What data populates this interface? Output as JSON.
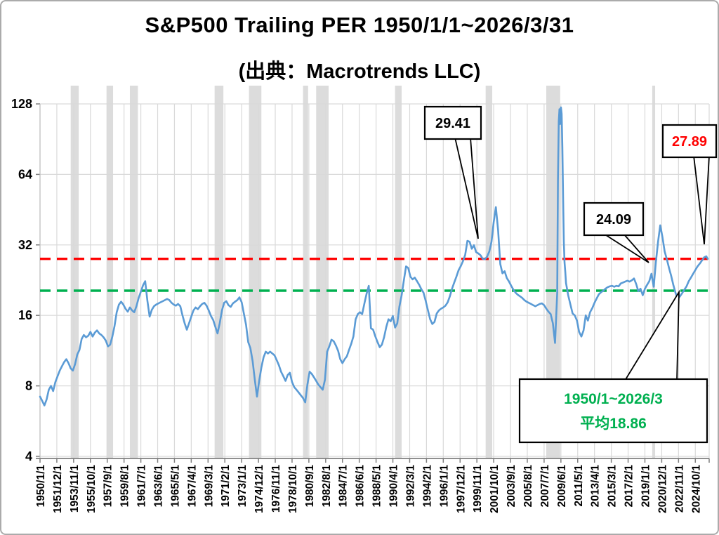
{
  "title": "S&P500 Trailing PER 1950/1/1~2026/3/31",
  "subtitle": "(出典：Macrotrends LLC)",
  "chart_data": {
    "type": "line",
    "series_name": "S&P500 Trailing PER",
    "y_scale": "log2",
    "ylim": [
      4,
      128
    ],
    "y_ticks": [
      128,
      64,
      32,
      16,
      8,
      4
    ],
    "x_tick_interval_months": 23,
    "x_tick_labels": [
      "1950/1/1",
      "1951/12/1",
      "1953/11/1",
      "1955/10/1",
      "1957/9/1",
      "1959/8/1",
      "1961/7/1",
      "1963/6/1",
      "1965/5/1",
      "1967/4/1",
      "1969/3/1",
      "1971/2/1",
      "1973/1/1",
      "1974/12/1",
      "1976/11/1",
      "1978/10/1",
      "1980/9/1",
      "1982/8/1",
      "1984/7/1",
      "1986/6/1",
      "1988/5/1",
      "1990/4/1",
      "1992/3/1",
      "1994/2/1",
      "1996/1/1",
      "1997/12/1",
      "1999/11/1",
      "2001/10/1",
      "2003/9/1",
      "2005/8/1",
      "2007/7/1",
      "2009/6/1",
      "2011/5/1",
      "2013/4/1",
      "2015/3/1",
      "2017/2/1",
      "2019/1/1",
      "2020/12/1",
      "2022/11/1",
      "2024/10/1"
    ],
    "grid": true,
    "legend": "none",
    "latest_line": {
      "value": 27.89,
      "color": "#ff0000",
      "style": "dashed"
    },
    "average_line": {
      "value": 18.86,
      "color": "#00b050",
      "style": "dashed"
    },
    "annotations": [
      {
        "label": "29.41",
        "color": "#000000"
      },
      {
        "label": "24.09",
        "color": "#000000"
      },
      {
        "label": "27.89",
        "color": "#ff0000"
      }
    ],
    "note_box": {
      "lines": [
        "1950/1~2026/3",
        "平均18.86"
      ],
      "color": "#00b050"
    },
    "recession_bands_months": [
      [
        42,
        53
      ],
      [
        91,
        100
      ],
      [
        123,
        134
      ],
      [
        239,
        251
      ],
      [
        286,
        303
      ],
      [
        360,
        367
      ],
      [
        378,
        395
      ],
      [
        486,
        495
      ],
      [
        610,
        619
      ],
      [
        693,
        712
      ],
      [
        838,
        842
      ]
    ],
    "colors": {
      "line": "#5b9bd5",
      "band": "#dcdcdc",
      "grid": "#d9d9d9",
      "axis": "#7f7f7f"
    },
    "points": [
      [
        1950,
        7.2
      ],
      [
        1950.25,
        6.9
      ],
      [
        1950.5,
        6.6
      ],
      [
        1950.75,
        7.0
      ],
      [
        1951,
        7.7
      ],
      [
        1951.25,
        8.0
      ],
      [
        1951.5,
        7.6
      ],
      [
        1951.75,
        8.3
      ],
      [
        1952,
        8.8
      ],
      [
        1952.25,
        9.3
      ],
      [
        1952.5,
        9.7
      ],
      [
        1952.75,
        10.1
      ],
      [
        1953,
        10.4
      ],
      [
        1953.25,
        10.0
      ],
      [
        1953.5,
        9.5
      ],
      [
        1953.75,
        9.3
      ],
      [
        1954,
        9.9
      ],
      [
        1954.25,
        10.9
      ],
      [
        1954.5,
        11.4
      ],
      [
        1954.75,
        12.7
      ],
      [
        1955,
        13.2
      ],
      [
        1955.25,
        12.9
      ],
      [
        1955.5,
        13.1
      ],
      [
        1955.75,
        13.6
      ],
      [
        1956,
        13.0
      ],
      [
        1956.25,
        13.5
      ],
      [
        1956.5,
        13.8
      ],
      [
        1956.75,
        13.4
      ],
      [
        1957,
        13.2
      ],
      [
        1957.25,
        12.9
      ],
      [
        1957.5,
        12.5
      ],
      [
        1957.75,
        11.8
      ],
      [
        1958,
        12.0
      ],
      [
        1958.25,
        13.0
      ],
      [
        1958.5,
        14.4
      ],
      [
        1958.75,
        16.5
      ],
      [
        1959,
        17.8
      ],
      [
        1959.25,
        18.3
      ],
      [
        1959.5,
        17.8
      ],
      [
        1959.75,
        17.1
      ],
      [
        1960,
        16.6
      ],
      [
        1960.25,
        17.3
      ],
      [
        1960.5,
        16.8
      ],
      [
        1960.75,
        16.5
      ],
      [
        1961,
        17.5
      ],
      [
        1961.25,
        19.0
      ],
      [
        1961.5,
        20.2
      ],
      [
        1961.75,
        21.5
      ],
      [
        1962,
        22.4
      ],
      [
        1962.25,
        18.5
      ],
      [
        1962.5,
        15.8
      ],
      [
        1962.75,
        16.9
      ],
      [
        1963,
        17.5
      ],
      [
        1963.25,
        17.8
      ],
      [
        1963.5,
        18.0
      ],
      [
        1963.75,
        18.2
      ],
      [
        1964,
        18.4
      ],
      [
        1964.25,
        18.6
      ],
      [
        1964.5,
        18.8
      ],
      [
        1964.75,
        18.6
      ],
      [
        1965,
        18.1
      ],
      [
        1965.25,
        17.8
      ],
      [
        1965.5,
        17.6
      ],
      [
        1965.75,
        17.9
      ],
      [
        1966,
        17.5
      ],
      [
        1966.25,
        16.0
      ],
      [
        1966.5,
        14.8
      ],
      [
        1966.75,
        13.9
      ],
      [
        1967,
        14.8
      ],
      [
        1967.25,
        15.8
      ],
      [
        1967.5,
        16.8
      ],
      [
        1967.75,
        17.3
      ],
      [
        1968,
        17.0
      ],
      [
        1968.25,
        17.5
      ],
      [
        1968.5,
        17.9
      ],
      [
        1968.75,
        18.1
      ],
      [
        1969,
        17.6
      ],
      [
        1969.25,
        16.8
      ],
      [
        1969.5,
        15.9
      ],
      [
        1969.75,
        15.3
      ],
      [
        1970,
        14.3
      ],
      [
        1970.25,
        13.4
      ],
      [
        1970.5,
        14.8
      ],
      [
        1970.75,
        16.8
      ],
      [
        1971,
        18.1
      ],
      [
        1971.25,
        18.4
      ],
      [
        1971.5,
        17.7
      ],
      [
        1971.75,
        17.4
      ],
      [
        1972,
        18.0
      ],
      [
        1972.25,
        18.3
      ],
      [
        1972.5,
        18.6
      ],
      [
        1972.75,
        19.1
      ],
      [
        1973,
        18.2
      ],
      [
        1973.25,
        16.3
      ],
      [
        1973.5,
        14.6
      ],
      [
        1973.75,
        12.3
      ],
      [
        1974,
        11.6
      ],
      [
        1974.25,
        10.2
      ],
      [
        1974.5,
        8.5
      ],
      [
        1974.75,
        7.2
      ],
      [
        1975,
        8.4
      ],
      [
        1975.25,
        9.6
      ],
      [
        1975.5,
        10.6
      ],
      [
        1975.75,
        11.2
      ],
      [
        1976,
        11.0
      ],
      [
        1976.25,
        11.2
      ],
      [
        1976.5,
        11.0
      ],
      [
        1976.75,
        10.8
      ],
      [
        1977,
        10.3
      ],
      [
        1977.25,
        9.8
      ],
      [
        1977.5,
        9.2
      ],
      [
        1977.75,
        8.8
      ],
      [
        1978,
        8.4
      ],
      [
        1978.25,
        8.9
      ],
      [
        1978.5,
        9.1
      ],
      [
        1978.75,
        8.3
      ],
      [
        1979,
        7.9
      ],
      [
        1979.25,
        7.7
      ],
      [
        1979.5,
        7.5
      ],
      [
        1979.75,
        7.3
      ],
      [
        1980,
        7.1
      ],
      [
        1980.25,
        6.8
      ],
      [
        1980.5,
        8.1
      ],
      [
        1980.75,
        9.2
      ],
      [
        1981,
        9.0
      ],
      [
        1981.25,
        8.7
      ],
      [
        1981.5,
        8.4
      ],
      [
        1981.75,
        8.1
      ],
      [
        1982,
        7.9
      ],
      [
        1982.25,
        7.7
      ],
      [
        1982.5,
        8.5
      ],
      [
        1982.75,
        11.2
      ],
      [
        1983,
        11.8
      ],
      [
        1983.25,
        12.6
      ],
      [
        1983.5,
        12.4
      ],
      [
        1983.75,
        11.9
      ],
      [
        1984,
        11.3
      ],
      [
        1984.25,
        10.4
      ],
      [
        1984.5,
        10.0
      ],
      [
        1984.75,
        10.4
      ],
      [
        1985,
        10.7
      ],
      [
        1985.25,
        11.4
      ],
      [
        1985.5,
        12.1
      ],
      [
        1985.75,
        13.0
      ],
      [
        1986,
        15.4
      ],
      [
        1986.25,
        16.2
      ],
      [
        1986.5,
        16.5
      ],
      [
        1986.75,
        16.2
      ],
      [
        1987,
        18.0
      ],
      [
        1987.25,
        19.8
      ],
      [
        1987.5,
        21.4
      ],
      [
        1987.75,
        14.1
      ],
      [
        1988,
        13.9
      ],
      [
        1988.25,
        13.0
      ],
      [
        1988.5,
        12.3
      ],
      [
        1988.75,
        11.7
      ],
      [
        1989,
        12.0
      ],
      [
        1989.25,
        12.9
      ],
      [
        1989.5,
        14.3
      ],
      [
        1989.75,
        15.4
      ],
      [
        1990,
        15.1
      ],
      [
        1990.25,
        15.9
      ],
      [
        1990.5,
        14.2
      ],
      [
        1990.75,
        14.8
      ],
      [
        1991,
        17.5
      ],
      [
        1991.25,
        19.5
      ],
      [
        1991.5,
        22.5
      ],
      [
        1991.75,
        25.9
      ],
      [
        1992,
        25.5
      ],
      [
        1992.25,
        23.4
      ],
      [
        1992.5,
        22.8
      ],
      [
        1992.75,
        23.2
      ],
      [
        1993,
        22.4
      ],
      [
        1993.25,
        21.6
      ],
      [
        1993.5,
        20.7
      ],
      [
        1993.75,
        20.0
      ],
      [
        1994,
        18.4
      ],
      [
        1994.25,
        16.8
      ],
      [
        1994.5,
        15.4
      ],
      [
        1994.75,
        14.7
      ],
      [
        1995,
        15.0
      ],
      [
        1995.25,
        16.3
      ],
      [
        1995.5,
        16.8
      ],
      [
        1995.75,
        17.1
      ],
      [
        1996,
        17.3
      ],
      [
        1996.25,
        17.6
      ],
      [
        1996.5,
        18.2
      ],
      [
        1996.75,
        19.3
      ],
      [
        1997,
        20.8
      ],
      [
        1997.25,
        22.1
      ],
      [
        1997.5,
        23.4
      ],
      [
        1997.75,
        25.0
      ],
      [
        1998,
        26.0
      ],
      [
        1998.25,
        27.3
      ],
      [
        1998.5,
        29.0
      ],
      [
        1998.75,
        33.3
      ],
      [
        1999,
        33.0
      ],
      [
        1999.25,
        30.8
      ],
      [
        1999.5,
        31.9
      ],
      [
        1999.75,
        29.8
      ],
      [
        2000,
        29.41
      ],
      [
        2000.25,
        28.9
      ],
      [
        2000.5,
        27.9
      ],
      [
        2000.75,
        27.8
      ],
      [
        2001,
        28.5
      ],
      [
        2001.25,
        30.0
      ],
      [
        2001.5,
        33.0
      ],
      [
        2001.75,
        40.0
      ],
      [
        2002,
        46.4
      ],
      [
        2002.25,
        37.0
      ],
      [
        2002.5,
        26.5
      ],
      [
        2002.75,
        24.2
      ],
      [
        2003,
        24.7
      ],
      [
        2003.25,
        23.1
      ],
      [
        2003.5,
        22.3
      ],
      [
        2003.75,
        21.4
      ],
      [
        2004,
        20.6
      ],
      [
        2004.25,
        20.0
      ],
      [
        2004.5,
        19.6
      ],
      [
        2004.75,
        19.3
      ],
      [
        2005,
        19.0
      ],
      [
        2005.25,
        18.6
      ],
      [
        2005.5,
        18.3
      ],
      [
        2005.75,
        18.1
      ],
      [
        2006,
        17.9
      ],
      [
        2006.25,
        17.7
      ],
      [
        2006.5,
        17.5
      ],
      [
        2006.75,
        17.7
      ],
      [
        2007,
        17.9
      ],
      [
        2007.25,
        18.0
      ],
      [
        2007.5,
        17.7
      ],
      [
        2007.75,
        17.1
      ],
      [
        2008,
        16.6
      ],
      [
        2008.25,
        16.2
      ],
      [
        2008.5,
        14.8
      ],
      [
        2008.75,
        12.2
      ],
      [
        2009,
        20.0
      ],
      [
        2009.08,
        60.0
      ],
      [
        2009.17,
        108.0
      ],
      [
        2009.25,
        121.5
      ],
      [
        2009.33,
        105.0
      ],
      [
        2009.42,
        123.7
      ],
      [
        2009.5,
        116.0
      ],
      [
        2009.58,
        84.0
      ],
      [
        2009.67,
        50.0
      ],
      [
        2009.75,
        33.0
      ],
      [
        2009.83,
        27.0
      ],
      [
        2009.92,
        24.5
      ],
      [
        2010,
        22.0
      ],
      [
        2010.25,
        19.5
      ],
      [
        2010.5,
        17.8
      ],
      [
        2010.75,
        16.3
      ],
      [
        2011,
        16.0
      ],
      [
        2011.25,
        15.2
      ],
      [
        2011.5,
        13.6
      ],
      [
        2011.75,
        13.0
      ],
      [
        2012,
        13.8
      ],
      [
        2012.25,
        16.0
      ],
      [
        2012.5,
        15.2
      ],
      [
        2012.75,
        16.5
      ],
      [
        2013,
        17.2
      ],
      [
        2013.25,
        18.1
      ],
      [
        2013.5,
        18.9
      ],
      [
        2013.75,
        19.7
      ],
      [
        2014,
        20.1
      ],
      [
        2014.25,
        20.4
      ],
      [
        2014.5,
        20.8
      ],
      [
        2014.75,
        21.1
      ],
      [
        2015,
        21.3
      ],
      [
        2015.25,
        21.4
      ],
      [
        2015.5,
        21.2
      ],
      [
        2015.75,
        21.4
      ],
      [
        2016,
        21.3
      ],
      [
        2016.25,
        21.9
      ],
      [
        2016.5,
        22.1
      ],
      [
        2016.75,
        22.3
      ],
      [
        2017,
        22.5
      ],
      [
        2017.25,
        22.3
      ],
      [
        2017.5,
        22.6
      ],
      [
        2017.75,
        23.0
      ],
      [
        2018,
        21.8
      ],
      [
        2018.25,
        20.3
      ],
      [
        2018.5,
        20.8
      ],
      [
        2018.75,
        19.5
      ],
      [
        2019,
        20.8
      ],
      [
        2019.25,
        21.6
      ],
      [
        2019.5,
        22.4
      ],
      [
        2019.75,
        24.09
      ],
      [
        2020,
        21.2
      ],
      [
        2020.25,
        27.0
      ],
      [
        2020.5,
        33.0
      ],
      [
        2020.75,
        38.8
      ],
      [
        2021,
        34.5
      ],
      [
        2021.25,
        30.0
      ],
      [
        2021.5,
        27.8
      ],
      [
        2021.75,
        25.5
      ],
      [
        2022,
        23.6
      ],
      [
        2022.25,
        21.5
      ],
      [
        2022.5,
        19.9
      ],
      [
        2022.75,
        18.8
      ],
      [
        2023,
        19.3
      ],
      [
        2023.25,
        19.9
      ],
      [
        2023.5,
        20.6
      ],
      [
        2023.75,
        21.3
      ],
      [
        2024,
        22.4
      ],
      [
        2024.25,
        23.2
      ],
      [
        2024.5,
        24.1
      ],
      [
        2024.75,
        25.0
      ],
      [
        2025,
        25.9
      ],
      [
        2025.25,
        26.6
      ],
      [
        2025.5,
        27.4
      ],
      [
        2025.75,
        28.3
      ],
      [
        2026,
        28.6
      ],
      [
        2026.17,
        27.89
      ]
    ]
  }
}
